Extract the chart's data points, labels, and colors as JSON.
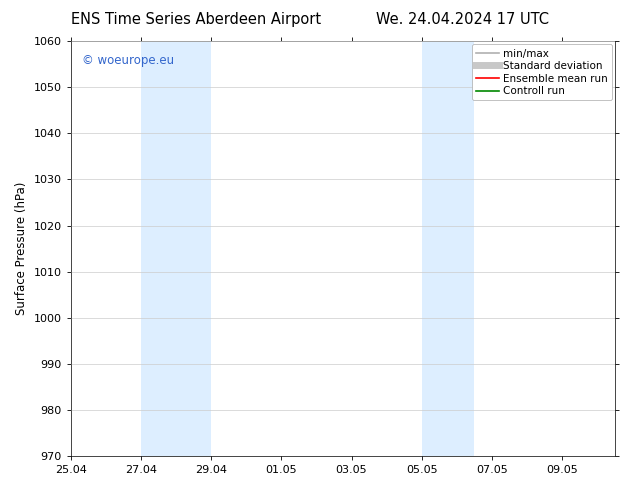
{
  "title_left": "ENS Time Series Aberdeen Airport",
  "title_right": "We. 24.04.2024 17 UTC",
  "ylabel": "Surface Pressure (hPa)",
  "ylim": [
    970,
    1060
  ],
  "yticks": [
    970,
    980,
    990,
    1000,
    1010,
    1020,
    1030,
    1040,
    1050,
    1060
  ],
  "xtick_labels": [
    "25.04",
    "27.04",
    "29.04",
    "01.05",
    "03.05",
    "05.05",
    "07.05",
    "09.05"
  ],
  "xtick_positions": [
    0,
    2,
    4,
    6,
    8,
    10,
    12,
    14
  ],
  "xlim": [
    0,
    15.5
  ],
  "shaded_bands": [
    {
      "x_start": 2,
      "x_end": 4
    },
    {
      "x_start": 10,
      "x_end": 11.5
    }
  ],
  "band_color": "#ddeeff",
  "watermark_text": "© woeurope.eu",
  "watermark_color": "#3366cc",
  "legend_items": [
    {
      "label": "min/max",
      "color": "#b0b0b0",
      "lw": 1.2
    },
    {
      "label": "Standard deviation",
      "color": "#c8c8c8",
      "lw": 5
    },
    {
      "label": "Ensemble mean run",
      "color": "#ff0000",
      "lw": 1.2
    },
    {
      "label": "Controll run",
      "color": "#008800",
      "lw": 1.2
    }
  ],
  "bg_color": "#ffffff",
  "grid_color": "#cccccc",
  "title_fontsize": 10.5,
  "tick_fontsize": 8,
  "ylabel_fontsize": 8.5,
  "watermark_fontsize": 8.5,
  "legend_fontsize": 7.5
}
